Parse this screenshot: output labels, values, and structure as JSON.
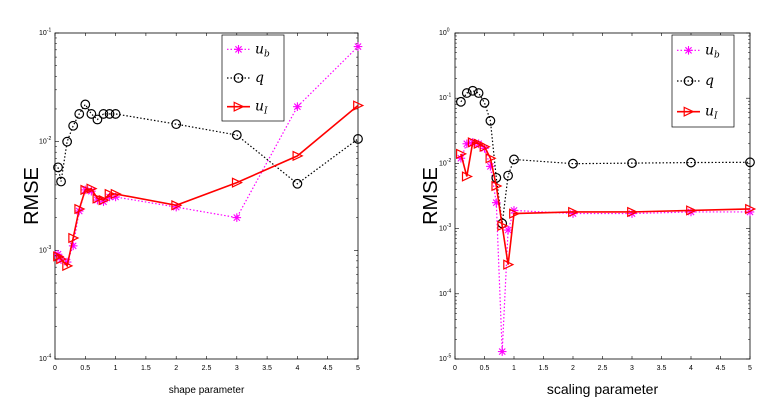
{
  "colors": {
    "ub": "#ff00ff",
    "q": "#000000",
    "uI": "#ff0000",
    "axis": "#000000"
  },
  "chart_data": [
    {
      "type": "line",
      "yscale": "log",
      "xlabel": "shape parameter",
      "ylabel": "RMSE",
      "xlim": [
        0,
        5
      ],
      "ylim": [
        0.0001,
        0.1
      ],
      "xticks": [
        0,
        0.5,
        1,
        1.5,
        2,
        2.5,
        3,
        3.5,
        4,
        4.5,
        5
      ],
      "xtick_labels": [
        "0",
        "0.5",
        "1",
        "1.5",
        "2",
        "2.5",
        "3",
        "3.5",
        "4",
        "4.5",
        "5"
      ],
      "yticks": [
        0.0001,
        0.001,
        0.01,
        0.1
      ],
      "ytick_labels": [
        {
          "base": "10",
          "exp": "-4"
        },
        {
          "base": "10",
          "exp": "-3"
        },
        {
          "base": "10",
          "exp": "-2"
        },
        {
          "base": "10",
          "exp": "-1"
        }
      ],
      "legend_position": "top-right",
      "series": [
        {
          "key": "ub",
          "name": "u",
          "sub": "b",
          "marker": "asterisk",
          "linestyle": "dotted",
          "x": [
            0.05,
            0.1,
            0.2,
            0.3,
            0.4,
            0.5,
            0.6,
            0.7,
            0.8,
            0.9,
            1.0,
            2.0,
            3.0,
            4.0,
            5.0
          ],
          "y": [
            0.00092,
            0.00082,
            0.00078,
            0.0011,
            0.0023,
            0.0036,
            0.0035,
            0.0029,
            0.0028,
            0.0031,
            0.0031,
            0.0025,
            0.002,
            0.021,
            0.075
          ]
        },
        {
          "key": "q",
          "name": "q",
          "sub": "",
          "marker": "circle",
          "linestyle": "dotted",
          "x": [
            0.05,
            0.1,
            0.2,
            0.3,
            0.4,
            0.5,
            0.6,
            0.7,
            0.8,
            0.9,
            1.0,
            2.0,
            3.0,
            4.0,
            5.0
          ],
          "y": [
            0.0058,
            0.0043,
            0.01,
            0.014,
            0.018,
            0.022,
            0.018,
            0.016,
            0.018,
            0.018,
            0.018,
            0.0145,
            0.0115,
            0.0041,
            0.0106
          ]
        },
        {
          "key": "uI",
          "name": "u",
          "sub": "I",
          "marker": "triangle-right",
          "linestyle": "solid",
          "x": [
            0.05,
            0.1,
            0.2,
            0.3,
            0.4,
            0.5,
            0.6,
            0.7,
            0.8,
            0.9,
            1.0,
            2.0,
            3.0,
            4.0,
            5.0
          ],
          "y": [
            0.00088,
            0.00083,
            0.00072,
            0.0013,
            0.0024,
            0.0036,
            0.0037,
            0.003,
            0.0029,
            0.0033,
            0.0033,
            0.0026,
            0.0042,
            0.0074,
            0.0215
          ]
        }
      ]
    },
    {
      "type": "line",
      "yscale": "log",
      "xlabel": "scaling parameter",
      "ylabel": "RMSE",
      "xlim": [
        0,
        5
      ],
      "ylim": [
        1e-05,
        1
      ],
      "xticks": [
        0,
        0.5,
        1,
        1.5,
        2,
        2.5,
        3,
        3.5,
        4,
        4.5,
        5
      ],
      "xtick_labels": [
        "0",
        "0.5",
        "1",
        "1.5",
        "2",
        "2.5",
        "3",
        "3.5",
        "4",
        "4.5",
        "5"
      ],
      "yticks": [
        1e-05,
        0.0001,
        0.001,
        0.01,
        0.1,
        1
      ],
      "ytick_labels": [
        {
          "base": "10",
          "exp": "-5"
        },
        {
          "base": "10",
          "exp": "-4"
        },
        {
          "base": "10",
          "exp": "-3"
        },
        {
          "base": "10",
          "exp": "-2"
        },
        {
          "base": "10",
          "exp": "-1"
        },
        {
          "base": "10",
          "exp": "0"
        }
      ],
      "legend_position": "top-right",
      "series": [
        {
          "key": "ub",
          "name": "u",
          "sub": "b",
          "marker": "asterisk",
          "linestyle": "dotted",
          "x": [
            0.1,
            0.2,
            0.3,
            0.4,
            0.5,
            0.6,
            0.7,
            0.8,
            0.9,
            1.0,
            2.0,
            3.0,
            4.0,
            5.0
          ],
          "y": [
            0.012,
            0.02,
            0.021,
            0.02,
            0.017,
            0.009,
            0.0025,
            1.3e-05,
            0.00095,
            0.0019,
            0.0017,
            0.0017,
            0.0018,
            0.0018
          ]
        },
        {
          "key": "q",
          "name": "q",
          "sub": "",
          "marker": "circle",
          "linestyle": "dotted",
          "x": [
            0.1,
            0.2,
            0.3,
            0.4,
            0.5,
            0.6,
            0.7,
            0.8,
            0.9,
            1.0,
            2.0,
            3.0,
            4.0,
            5.0
          ],
          "y": [
            0.088,
            0.12,
            0.13,
            0.12,
            0.085,
            0.045,
            0.006,
            0.0012,
            0.0065,
            0.0115,
            0.0099,
            0.0101,
            0.0103,
            0.0104
          ]
        },
        {
          "key": "uI",
          "name": "u",
          "sub": "I",
          "marker": "triangle-right",
          "linestyle": "solid",
          "x": [
            0.1,
            0.2,
            0.3,
            0.4,
            0.5,
            0.6,
            0.7,
            0.8,
            0.9,
            1.0,
            2.0,
            3.0,
            4.0,
            5.0
          ],
          "y": [
            0.014,
            0.0063,
            0.021,
            0.02,
            0.018,
            0.012,
            0.0045,
            0.0011,
            0.00028,
            0.0017,
            0.0018,
            0.0018,
            0.0019,
            0.002
          ]
        }
      ]
    }
  ]
}
